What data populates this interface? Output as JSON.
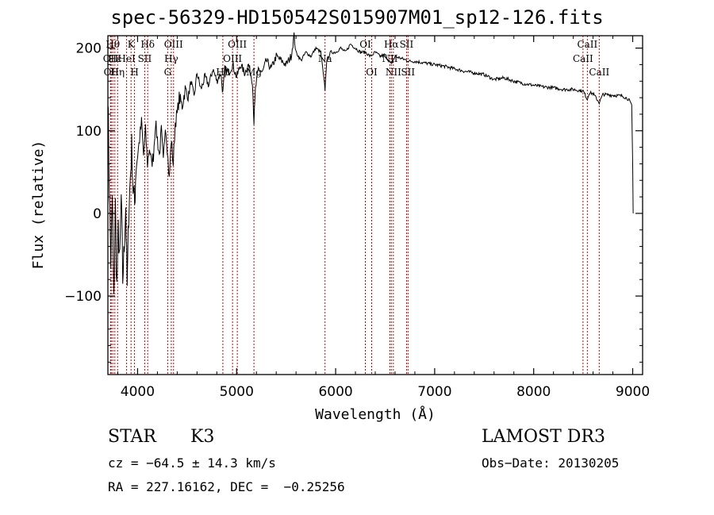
{
  "chart_data": {
    "type": "line",
    "title": "spec-56329-HD150542S015907M01_sp12-126.fits",
    "xlabel": "Wavelength (Å)",
    "ylabel": "Flux (relative)",
    "xlim": [
      3700,
      9100
    ],
    "ylim": [
      -195,
      215
    ],
    "x_ticks": [
      4000,
      5000,
      6000,
      7000,
      8000,
      9000
    ],
    "x_tick_labels": [
      "4000",
      "5000",
      "6000",
      "7000",
      "8000",
      "9000"
    ],
    "y_ticks": [
      -100,
      0,
      100,
      200
    ],
    "y_tick_labels": [
      "−100",
      "0",
      "100",
      "200"
    ],
    "series": [
      {
        "name": "flux",
        "points": [
          [
            3700,
            150
          ],
          [
            3715,
            30
          ],
          [
            3730,
            -60
          ],
          [
            3745,
            20
          ],
          [
            3760,
            -110
          ],
          [
            3775,
            10
          ],
          [
            3790,
            -90
          ],
          [
            3805,
            -20
          ],
          [
            3820,
            -60
          ],
          [
            3835,
            20
          ],
          [
            3850,
            -80
          ],
          [
            3865,
            -40
          ],
          [
            3880,
            10
          ],
          [
            3895,
            -90
          ],
          [
            3910,
            0
          ],
          [
            3925,
            40
          ],
          [
            3940,
            80
          ],
          [
            3955,
            30
          ],
          [
            3970,
            10
          ],
          [
            3985,
            60
          ],
          [
            4000,
            70
          ],
          [
            4020,
            90
          ],
          [
            4040,
            110
          ],
          [
            4060,
            70
          ],
          [
            4080,
            100
          ],
          [
            4100,
            60
          ],
          [
            4120,
            80
          ],
          [
            4140,
            60
          ],
          [
            4160,
            70
          ],
          [
            4180,
            110
          ],
          [
            4200,
            90
          ],
          [
            4220,
            70
          ],
          [
            4240,
            100
          ],
          [
            4260,
            60
          ],
          [
            4280,
            110
          ],
          [
            4300,
            80
          ],
          [
            4320,
            40
          ],
          [
            4340,
            90
          ],
          [
            4360,
            60
          ],
          [
            4380,
            110
          ],
          [
            4400,
            120
          ],
          [
            4420,
            140
          ],
          [
            4450,
            130
          ],
          [
            4480,
            150
          ],
          [
            4510,
            140
          ],
          [
            4540,
            160
          ],
          [
            4570,
            140
          ],
          [
            4600,
            170
          ],
          [
            4640,
            150
          ],
          [
            4680,
            165
          ],
          [
            4720,
            155
          ],
          [
            4760,
            175
          ],
          [
            4800,
            160
          ],
          [
            4840,
            170
          ],
          [
            4861,
            145
          ],
          [
            4880,
            175
          ],
          [
            4920,
            170
          ],
          [
            4960,
            180
          ],
          [
            5000,
            165
          ],
          [
            5040,
            180
          ],
          [
            5080,
            170
          ],
          [
            5120,
            180
          ],
          [
            5160,
            160
          ],
          [
            5175,
            110
          ],
          [
            5190,
            150
          ],
          [
            5220,
            175
          ],
          [
            5260,
            170
          ],
          [
            5300,
            185
          ],
          [
            5350,
            175
          ],
          [
            5400,
            190
          ],
          [
            5450,
            185
          ],
          [
            5500,
            180
          ],
          [
            5550,
            190
          ],
          [
            5580,
            215
          ],
          [
            5600,
            195
          ],
          [
            5650,
            185
          ],
          [
            5700,
            195
          ],
          [
            5750,
            190
          ],
          [
            5800,
            200
          ],
          [
            5850,
            195
          ],
          [
            5893,
            150
          ],
          [
            5910,
            185
          ],
          [
            5950,
            195
          ],
          [
            6000,
            195
          ],
          [
            6050,
            200
          ],
          [
            6100,
            195
          ],
          [
            6150,
            205
          ],
          [
            6200,
            200
          ],
          [
            6250,
            195
          ],
          [
            6300,
            195
          ],
          [
            6350,
            190
          ],
          [
            6400,
            195
          ],
          [
            6450,
            190
          ],
          [
            6500,
            192
          ],
          [
            6563,
            180
          ],
          [
            6600,
            190
          ],
          [
            6650,
            188
          ],
          [
            6700,
            186
          ],
          [
            6750,
            184
          ],
          [
            6800,
            184
          ],
          [
            6900,
            182
          ],
          [
            7000,
            180
          ],
          [
            7100,
            178
          ],
          [
            7200,
            175
          ],
          [
            7300,
            172
          ],
          [
            7400,
            170
          ],
          [
            7500,
            168
          ],
          [
            7600,
            162
          ],
          [
            7700,
            164
          ],
          [
            7800,
            160
          ],
          [
            7900,
            157
          ],
          [
            8000,
            155
          ],
          [
            8100,
            153
          ],
          [
            8200,
            152
          ],
          [
            8300,
            150
          ],
          [
            8400,
            150
          ],
          [
            8500,
            148
          ],
          [
            8542,
            138
          ],
          [
            8560,
            146
          ],
          [
            8600,
            145
          ],
          [
            8662,
            134
          ],
          [
            8700,
            144
          ],
          [
            8800,
            143
          ],
          [
            8900,
            142
          ],
          [
            8960,
            138
          ],
          [
            8990,
            130
          ],
          [
            9000,
            60
          ],
          [
            9005,
            0
          ]
        ]
      }
    ],
    "lines": [
      {
        "wavelength": 3727,
        "label": "OII",
        "row": 1
      },
      {
        "wavelength": 3734,
        "label": "OII",
        "row": 2
      },
      {
        "wavelength": 3750,
        "label": "Hθ",
        "row": 0
      },
      {
        "wavelength": 3770,
        "label": "Hε",
        "row": 1
      },
      {
        "wavelength": 3798,
        "label": "Hη",
        "row": 2
      },
      {
        "wavelength": 3889,
        "label": "HeI",
        "row": 1
      },
      {
        "wavelength": 3934,
        "label": "K",
        "row": 0
      },
      {
        "wavelength": 3969,
        "label": "H",
        "row": 2
      },
      {
        "wavelength": 4072,
        "label": "SII",
        "row": 1
      },
      {
        "wavelength": 4102,
        "label": "Hδ",
        "row": 0
      },
      {
        "wavelength": 4304,
        "label": "G",
        "row": 2
      },
      {
        "wavelength": 4340,
        "label": "Hγ",
        "row": 1
      },
      {
        "wavelength": 4363,
        "label": "OIII",
        "row": 0
      },
      {
        "wavelength": 4861,
        "label": "Hβ",
        "row": 2
      },
      {
        "wavelength": 4959,
        "label": "OIII",
        "row": 1
      },
      {
        "wavelength": 5007,
        "label": "OIII",
        "row": 0
      },
      {
        "wavelength": 5175,
        "label": "Mg",
        "row": 2
      },
      {
        "wavelength": 5893,
        "label": "Na",
        "row": 1
      },
      {
        "wavelength": 6300,
        "label": "OI",
        "row": 0
      },
      {
        "wavelength": 6364,
        "label": "OI",
        "row": 2
      },
      {
        "wavelength": 6548,
        "label": "NII",
        "row": 1
      },
      {
        "wavelength": 6563,
        "label": "Hα",
        "row": 0
      },
      {
        "wavelength": 6583,
        "label": "NII",
        "row": 2
      },
      {
        "wavelength": 6716,
        "label": "SII",
        "row": 0
      },
      {
        "wavelength": 6731,
        "label": "SII",
        "row": 2
      },
      {
        "wavelength": 8498,
        "label": "CaII",
        "row": 1
      },
      {
        "wavelength": 8542,
        "label": "CaII",
        "row": 0
      },
      {
        "wavelength": 8662,
        "label": "CaII",
        "row": 2
      }
    ],
    "colors": {
      "line_marker": "#cc0000",
      "spectrum": "#000000",
      "axes": "#000000"
    }
  },
  "footer": {
    "object_type": "STAR",
    "subclass": "K3",
    "survey": "LAMOST DR3",
    "cz": "cz = −64.5 ± 14.3 km/s",
    "obs_date": "Obs−Date: 20130205",
    "coords": "RA = 227.16162, DEC =  −0.25256"
  }
}
